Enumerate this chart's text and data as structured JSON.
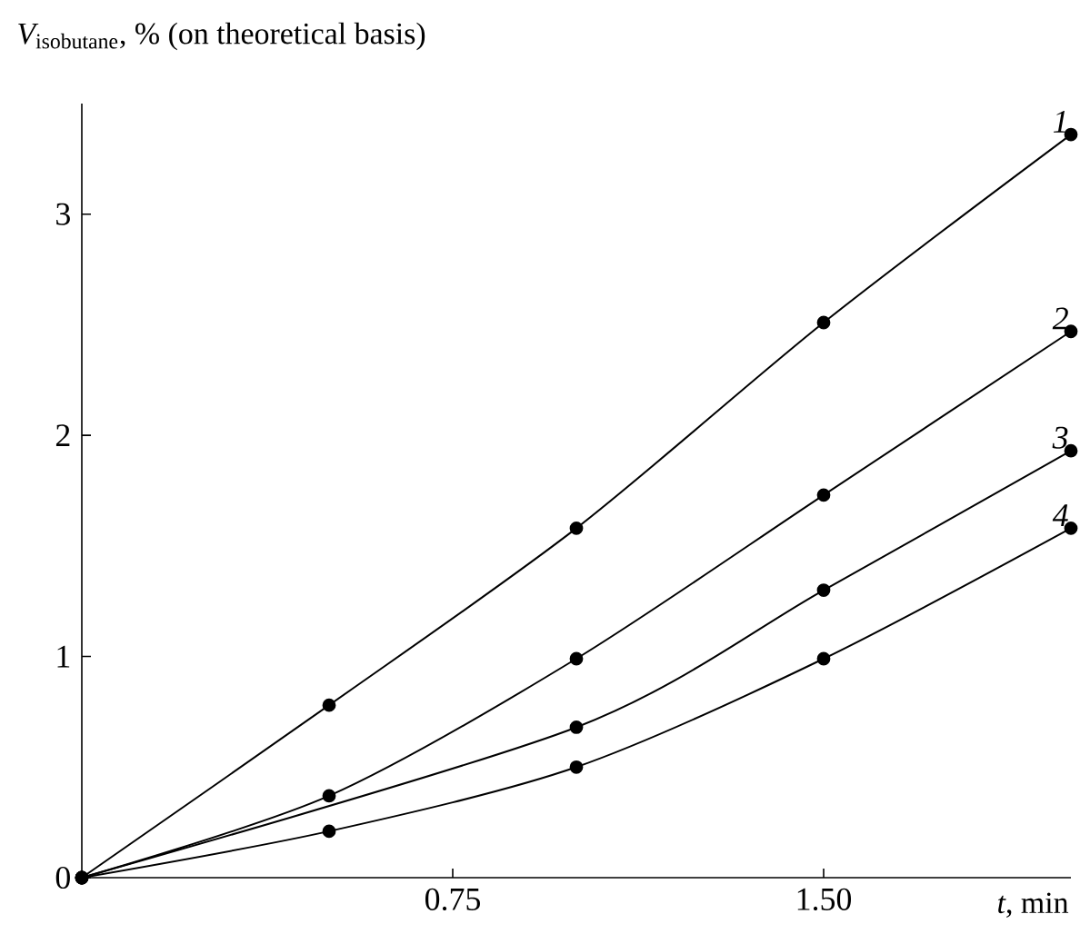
{
  "chart_data": {
    "type": "line",
    "xlabel": "*t*, min",
    "ylabel": "\\text{\\itshape V}_{\\text{isobutane}}\\text{, \\% (on theoretical basis)}",
    "x": [
      0,
      0.5,
      1.0,
      1.5,
      2.0
    ],
    "series": [
      {
        "name": "1",
        "color": "#000000",
        "values": [
          0,
          0.78,
          1.58,
          2.51,
          3.36
        ]
      },
      {
        "name": "2",
        "color": "#000000",
        "values": [
          0,
          0.37,
          0.99,
          1.73,
          2.47
        ]
      },
      {
        "name": "3",
        "color": "#000000",
        "x": [
          0,
          1.0,
          1.5,
          2.0
        ],
        "values": [
          0,
          0.68,
          1.3,
          1.93
        ]
      },
      {
        "name": "4",
        "color": "#000000",
        "values": [
          0,
          0.21,
          0.5,
          0.99,
          1.58
        ]
      }
    ],
    "xlim": [
      0,
      2.0
    ],
    "ylim": [
      0,
      3.5
    ],
    "xticks": [
      0.75,
      {
        "value": 1.5,
        "label": "1.50"
      }
    ],
    "yticks": [
      0,
      1,
      2,
      3
    ],
    "grid": false,
    "legend": false,
    "marker": "circle",
    "line_style": "solid"
  }
}
